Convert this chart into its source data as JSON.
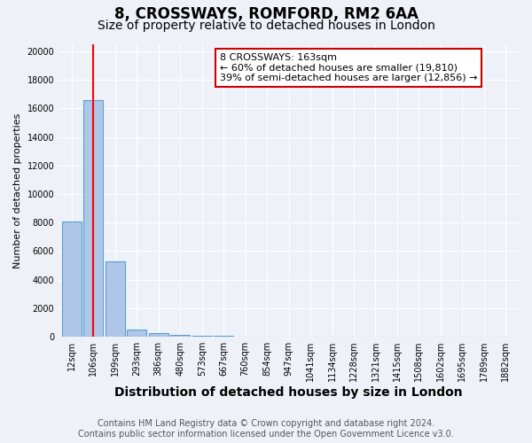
{
  "title": "8, CROSSWAYS, ROMFORD, RM2 6AA",
  "subtitle": "Size of property relative to detached houses in London",
  "xlabel": "Distribution of detached houses by size in London",
  "ylabel": "Number of detached properties",
  "bins": [
    "12sqm",
    "106sqm",
    "199sqm",
    "293sqm",
    "386sqm",
    "480sqm",
    "573sqm",
    "667sqm",
    "760sqm",
    "854sqm",
    "947sqm",
    "1041sqm",
    "1134sqm",
    "1228sqm",
    "1321sqm",
    "1415sqm",
    "1508sqm",
    "1602sqm",
    "1695sqm",
    "1789sqm",
    "1882sqm"
  ],
  "values": [
    8050,
    16600,
    5300,
    500,
    250,
    100,
    60,
    40,
    20,
    10,
    5,
    3,
    2,
    1,
    1,
    1,
    0,
    0,
    0,
    0,
    0
  ],
  "bar_color": "#aec6e8",
  "bar_edge_color": "#5a9fd4",
  "red_line_bin_index": 1,
  "annotation_line1": "8 CROSSWAYS: 163sqm",
  "annotation_line2": "← 60% of detached houses are smaller (19,810)",
  "annotation_line3": "39% of semi-detached houses are larger (12,856) →",
  "annotation_box_color": "#ffffff",
  "annotation_box_edge": "#cc0000",
  "ylim": [
    0,
    20500
  ],
  "yticks": [
    0,
    2000,
    4000,
    6000,
    8000,
    10000,
    12000,
    14000,
    16000,
    18000,
    20000
  ],
  "footer_line1": "Contains HM Land Registry data © Crown copyright and database right 2024.",
  "footer_line2": "Contains public sector information licensed under the Open Government Licence v3.0.",
  "background_color": "#eef2f8",
  "grid_color": "#ffffff",
  "title_fontsize": 12,
  "subtitle_fontsize": 10,
  "xlabel_fontsize": 10,
  "ylabel_fontsize": 8,
  "tick_fontsize": 7,
  "footer_fontsize": 7,
  "annotation_fontsize": 8
}
